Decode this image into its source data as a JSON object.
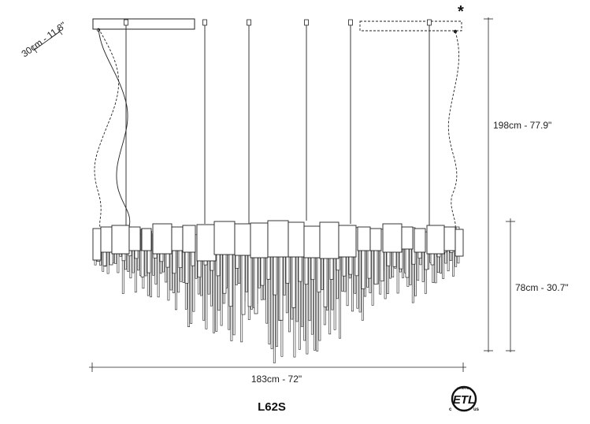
{
  "product": {
    "model": "L62S"
  },
  "dimensions": {
    "depth": "30cm - 11.8\"",
    "total_height": "198cm - 77.9\"",
    "body_height": "78cm - 30.7\"",
    "width": "183cm - 72\""
  },
  "annotations": {
    "asterisk": "*"
  },
  "certification": {
    "mark": "ETL",
    "left": "c",
    "right": "us",
    "ring_text": "INTERTEK"
  },
  "colors": {
    "line": "#222222",
    "background": "#ffffff"
  }
}
